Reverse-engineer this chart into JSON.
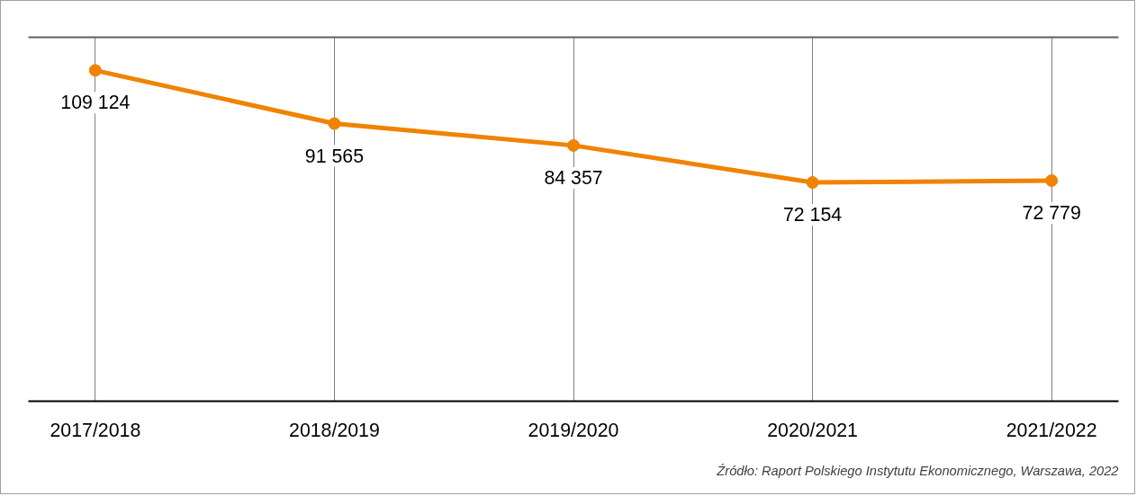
{
  "chart_data": {
    "type": "line",
    "categories": [
      "2017/2018",
      "2018/2019",
      "2019/2020",
      "2020/2021",
      "2021/2022"
    ],
    "series": [
      {
        "color": "#f08300",
        "values": [
          109124,
          91565,
          84357,
          72154,
          72779
        ]
      }
    ],
    "data_labels": true,
    "grid": "x",
    "tick_labels": "x",
    "marker": "circle",
    "line_style": "solid",
    "annotations": [
      "Źródło: Raport Polskiego Instytutu Ekonomicznego, Warszawa, 2022"
    ]
  }
}
